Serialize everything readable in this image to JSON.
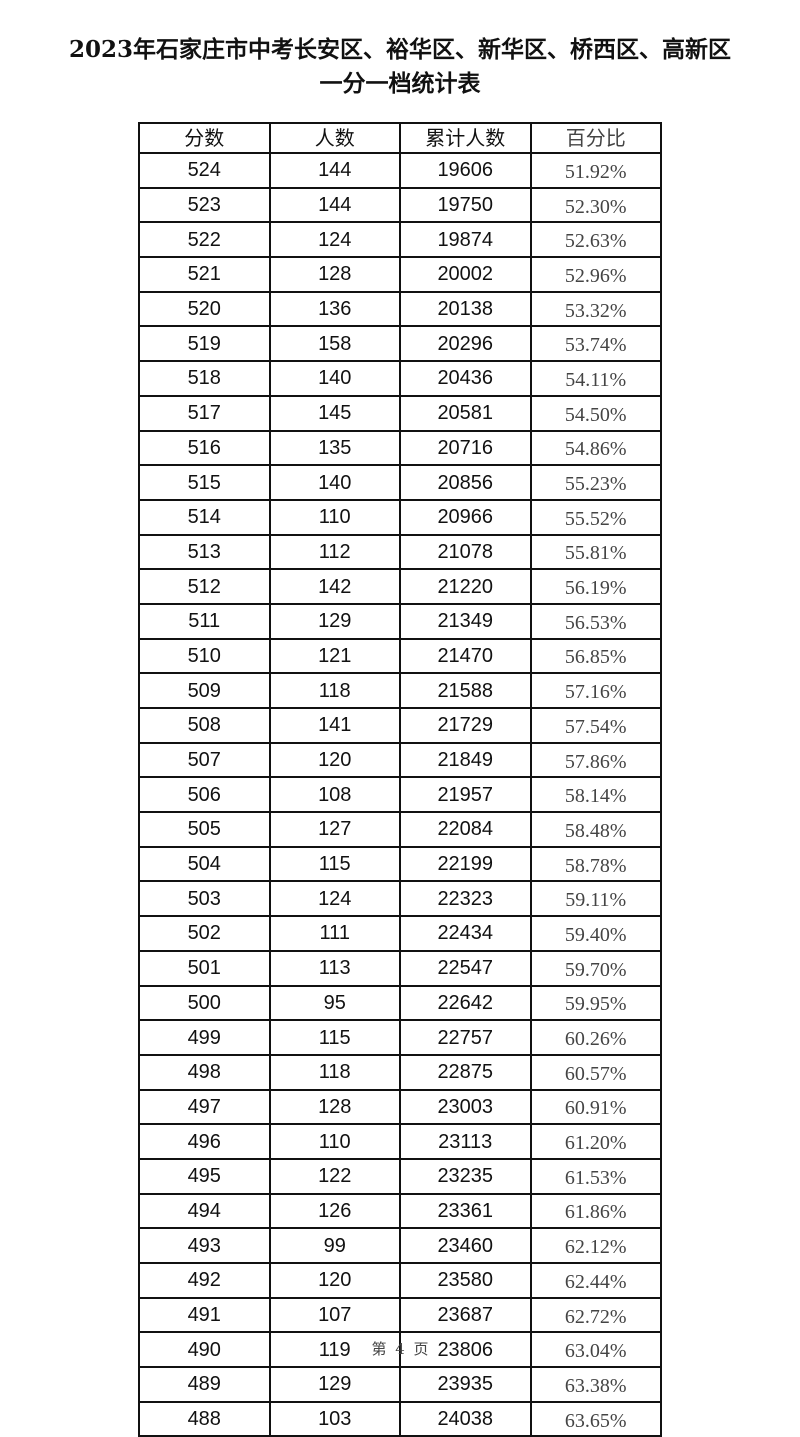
{
  "document": {
    "title_line1": "2023年石家庄市中考长安区、裕华区、新华区、桥西区、高新区",
    "title_line2": "一分一档统计表",
    "footer": "第 4 页"
  },
  "table": {
    "headers": [
      "分数",
      "人数",
      "累计人数",
      "百分比"
    ],
    "rows": [
      [
        "524",
        "144",
        "19606",
        "51.92%"
      ],
      [
        "523",
        "144",
        "19750",
        "52.30%"
      ],
      [
        "522",
        "124",
        "19874",
        "52.63%"
      ],
      [
        "521",
        "128",
        "20002",
        "52.96%"
      ],
      [
        "520",
        "136",
        "20138",
        "53.32%"
      ],
      [
        "519",
        "158",
        "20296",
        "53.74%"
      ],
      [
        "518",
        "140",
        "20436",
        "54.11%"
      ],
      [
        "517",
        "145",
        "20581",
        "54.50%"
      ],
      [
        "516",
        "135",
        "20716",
        "54.86%"
      ],
      [
        "515",
        "140",
        "20856",
        "55.23%"
      ],
      [
        "514",
        "110",
        "20966",
        "55.52%"
      ],
      [
        "513",
        "112",
        "21078",
        "55.81%"
      ],
      [
        "512",
        "142",
        "21220",
        "56.19%"
      ],
      [
        "511",
        "129",
        "21349",
        "56.53%"
      ],
      [
        "510",
        "121",
        "21470",
        "56.85%"
      ],
      [
        "509",
        "118",
        "21588",
        "57.16%"
      ],
      [
        "508",
        "141",
        "21729",
        "57.54%"
      ],
      [
        "507",
        "120",
        "21849",
        "57.86%"
      ],
      [
        "506",
        "108",
        "21957",
        "58.14%"
      ],
      [
        "505",
        "127",
        "22084",
        "58.48%"
      ],
      [
        "504",
        "115",
        "22199",
        "58.78%"
      ],
      [
        "503",
        "124",
        "22323",
        "59.11%"
      ],
      [
        "502",
        "111",
        "22434",
        "59.40%"
      ],
      [
        "501",
        "113",
        "22547",
        "59.70%"
      ],
      [
        "500",
        "95",
        "22642",
        "59.95%"
      ],
      [
        "499",
        "115",
        "22757",
        "60.26%"
      ],
      [
        "498",
        "118",
        "22875",
        "60.57%"
      ],
      [
        "497",
        "128",
        "23003",
        "60.91%"
      ],
      [
        "496",
        "110",
        "23113",
        "61.20%"
      ],
      [
        "495",
        "122",
        "23235",
        "61.53%"
      ],
      [
        "494",
        "126",
        "23361",
        "61.86%"
      ],
      [
        "493",
        "99",
        "23460",
        "62.12%"
      ],
      [
        "492",
        "120",
        "23580",
        "62.44%"
      ],
      [
        "491",
        "107",
        "23687",
        "62.72%"
      ],
      [
        "490",
        "119",
        "23806",
        "63.04%"
      ],
      [
        "489",
        "129",
        "23935",
        "63.38%"
      ],
      [
        "488",
        "103",
        "24038",
        "63.65%"
      ]
    ]
  }
}
